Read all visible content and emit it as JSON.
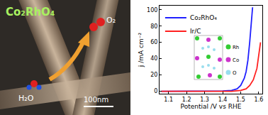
{
  "chart_data": {
    "type": "line",
    "xlabel": "Potential /V vs RHE",
    "ylabel": "j /mA cm⁻²",
    "xlim": [
      1.05,
      1.62
    ],
    "xticks": [
      1.1,
      1.2,
      1.3,
      1.4,
      1.5,
      1.6
    ],
    "ylim": [
      -3,
      105
    ],
    "yticks": [
      0,
      20,
      40,
      60,
      80,
      100
    ],
    "legend": "upper left",
    "grid": false,
    "series": [
      {
        "name": "Co₂RhO₄",
        "color": "#2020ff",
        "x": [
          1.06,
          1.2,
          1.3,
          1.4,
          1.45,
          1.48,
          1.5,
          1.52,
          1.53,
          1.54,
          1.55,
          1.56,
          1.566
        ],
        "values": [
          0,
          0,
          0,
          0.3,
          1,
          3,
          7,
          16,
          24,
          38,
          60,
          88,
          103
        ]
      },
      {
        "name": "Ir/C",
        "color": "#ff2020",
        "x": [
          1.06,
          1.2,
          1.3,
          1.4,
          1.45,
          1.5,
          1.53,
          1.55,
          1.57,
          1.59,
          1.6,
          1.61
        ],
        "values": [
          0,
          0,
          0,
          0,
          0,
          1,
          3,
          7,
          14,
          28,
          42,
          60
        ]
      }
    ]
  },
  "inset": {
    "labels": [
      {
        "text": "Rh",
        "color": "#33cc33"
      },
      {
        "text": "Co",
        "color": "#cc33cc"
      },
      {
        "text": "O",
        "color": "#99ddee"
      }
    ]
  },
  "photo": {
    "title": "Co₂RhO₄",
    "product": "O₂",
    "reactant": "H₂O",
    "scale_bar": "100nm"
  }
}
